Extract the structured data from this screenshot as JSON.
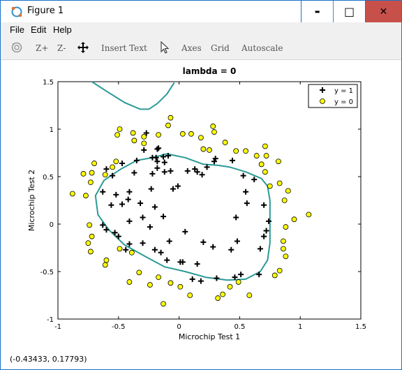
{
  "window": {
    "title": "Figure 1"
  },
  "window_controls": {
    "minimize": "▬",
    "maximize": "□",
    "close": "✕"
  },
  "menu": {
    "file": "File",
    "edit": "Edit",
    "help": "Help"
  },
  "toolbar": {
    "zoom_in": "Z+",
    "zoom_out": "Z-",
    "insert_text": "Insert Text",
    "axes": "Axes",
    "grid": "Grid",
    "autoscale": "Autoscale"
  },
  "status": {
    "coords": "(-0.43433, 0.17793)"
  },
  "colors": {
    "boundary": "#2a9a96",
    "negative_fill": "#ffff00",
    "accent": "#1a73c8",
    "close": "#c8504a"
  },
  "chart_data": {
    "type": "scatter",
    "title": "lambda = 0",
    "xlabel": "Microchip Test 1",
    "ylabel": "Microchip Test 2",
    "xlim": [
      -1,
      1.5
    ],
    "ylim": [
      -1,
      1.5
    ],
    "xticks": [
      "-1",
      "-0.5",
      "0",
      "0.5",
      "1",
      "1.5"
    ],
    "yticks": [
      "-1",
      "-0.5",
      "0",
      "0.5",
      "1",
      "1.5"
    ],
    "legend": {
      "placement": "top-right",
      "entries": [
        "y = 1",
        "y = 0"
      ]
    },
    "series": [
      {
        "name": "y = 1",
        "marker": "plus",
        "points": [
          [
            -0.27,
            0.96
          ],
          [
            -0.29,
            0.78
          ],
          [
            -0.18,
            0.79
          ],
          [
            -0.22,
            0.7
          ],
          [
            -0.19,
            0.7
          ],
          [
            -0.13,
            0.71
          ],
          [
            -0.09,
            0.72
          ],
          [
            -0.18,
            0.66
          ],
          [
            -0.12,
            0.65
          ],
          [
            -0.18,
            0.59
          ],
          [
            -0.12,
            0.55
          ],
          [
            -0.07,
            0.56
          ],
          [
            -0.17,
            0.8
          ],
          [
            -0.35,
            0.67
          ],
          [
            -0.47,
            0.64
          ],
          [
            -0.55,
            0.51
          ],
          [
            -0.6,
            0.58
          ],
          [
            -0.37,
            0.54
          ],
          [
            -0.22,
            0.53
          ],
          [
            -0.63,
            0.34
          ],
          [
            -0.52,
            0.31
          ],
          [
            -0.41,
            0.34
          ],
          [
            -0.23,
            0.37
          ],
          [
            -0.05,
            0.37
          ],
          [
            0.07,
            0.56
          ],
          [
            0.13,
            0.58
          ],
          [
            0.15,
            0.55
          ],
          [
            0.23,
            0.6
          ],
          [
            0.29,
            0.66
          ],
          [
            0.3,
            0.69
          ],
          [
            0.44,
            0.67
          ],
          [
            0.53,
            0.51
          ],
          [
            0.55,
            0.34
          ],
          [
            0.56,
            0.22
          ],
          [
            0.62,
            0.47
          ],
          [
            0.7,
            0.2
          ],
          [
            0.74,
            0.03
          ],
          [
            0.72,
            -0.07
          ],
          [
            0.7,
            -0.13
          ],
          [
            0.67,
            -0.26
          ],
          [
            0.66,
            -0.53
          ],
          [
            0.51,
            -0.53
          ],
          [
            0.46,
            -0.56
          ],
          [
            0.31,
            -0.57
          ],
          [
            0.18,
            -0.6
          ],
          [
            0.11,
            -0.58
          ],
          [
            0.15,
            -0.42
          ],
          [
            0.01,
            -0.4
          ],
          [
            0.03,
            -0.4
          ],
          [
            -0.1,
            -0.38
          ],
          [
            -0.15,
            -0.3
          ],
          [
            -0.2,
            -0.27
          ],
          [
            -0.3,
            -0.2
          ],
          [
            -0.41,
            -0.21
          ],
          [
            -0.44,
            -0.27
          ],
          [
            -0.5,
            -0.13
          ],
          [
            -0.53,
            -0.09
          ],
          [
            -0.6,
            -0.06
          ],
          [
            -0.63,
            -0.01
          ],
          [
            -0.41,
            0.03
          ],
          [
            -0.3,
            0.07
          ],
          [
            -0.24,
            -0.03
          ],
          [
            -0.13,
            0.08
          ],
          [
            -0.2,
            0.18
          ],
          [
            -0.32,
            0.22
          ],
          [
            -0.42,
            0.26
          ],
          [
            -0.56,
            0.2
          ],
          [
            -0.47,
            0.21
          ],
          [
            -0.08,
            -0.18
          ],
          [
            0.05,
            -0.08
          ],
          [
            0.2,
            -0.19
          ],
          [
            0.28,
            -0.24
          ],
          [
            0.43,
            -0.27
          ],
          [
            0.48,
            -0.18
          ],
          [
            0.47,
            0.07
          ],
          [
            0.19,
            0.52
          ],
          [
            -0.01,
            0.4
          ]
        ]
      },
      {
        "name": "y = 0",
        "marker": "circle",
        "points": [
          [
            -0.49,
            1.0
          ],
          [
            -0.51,
            0.94
          ],
          [
            -0.38,
            0.96
          ],
          [
            -0.29,
            0.92
          ],
          [
            -0.17,
            0.94
          ],
          [
            -0.07,
            1.12
          ],
          [
            -0.09,
            1.04
          ],
          [
            0.03,
            0.95
          ],
          [
            0.1,
            0.95
          ],
          [
            0.18,
            0.91
          ],
          [
            0.29,
            0.97
          ],
          [
            0.28,
            1.03
          ],
          [
            0.2,
            0.79
          ],
          [
            0.25,
            0.78
          ],
          [
            0.38,
            0.86
          ],
          [
            0.47,
            0.77
          ],
          [
            0.55,
            0.77
          ],
          [
            0.64,
            0.72
          ],
          [
            0.71,
            0.82
          ],
          [
            0.68,
            0.63
          ],
          [
            0.71,
            0.55
          ],
          [
            0.82,
            0.66
          ],
          [
            0.83,
            0.43
          ],
          [
            0.75,
            0.4
          ],
          [
            0.87,
            0.25
          ],
          [
            0.9,
            0.35
          ],
          [
            0.95,
            0.05
          ],
          [
            1.07,
            0.1
          ],
          [
            0.88,
            -0.03
          ],
          [
            0.86,
            -0.18
          ],
          [
            0.86,
            -0.26
          ],
          [
            0.88,
            -0.34
          ],
          [
            0.83,
            -0.49
          ],
          [
            0.79,
            -0.54
          ],
          [
            0.58,
            -0.75
          ],
          [
            0.42,
            -0.66
          ],
          [
            0.32,
            -0.78
          ],
          [
            0.09,
            -0.75
          ],
          [
            0.01,
            -0.66
          ],
          [
            -0.07,
            -0.62
          ],
          [
            -0.24,
            -0.64
          ],
          [
            -0.17,
            -0.56
          ],
          [
            -0.33,
            -0.51
          ],
          [
            -0.39,
            -0.3
          ],
          [
            -0.49,
            -0.26
          ],
          [
            -0.6,
            -0.38
          ],
          [
            -0.75,
            -0.2
          ],
          [
            -0.73,
            -0.29
          ],
          [
            -0.72,
            -0.13
          ],
          [
            -0.74,
            -0.01
          ],
          [
            -0.77,
            0.3
          ],
          [
            -0.73,
            0.44
          ],
          [
            -0.79,
            0.53
          ],
          [
            -0.72,
            0.54
          ],
          [
            -0.7,
            0.64
          ],
          [
            -0.61,
            0.52
          ],
          [
            -0.55,
            0.6
          ],
          [
            -0.52,
            0.66
          ],
          [
            -0.37,
            0.88
          ],
          [
            -0.29,
            0.85
          ],
          [
            -0.88,
            0.32
          ],
          [
            -0.61,
            -0.43
          ],
          [
            -0.41,
            -0.61
          ],
          [
            -0.13,
            -0.84
          ],
          [
            0.36,
            -0.74
          ],
          [
            0.49,
            -0.61
          ],
          [
            0.72,
            0.72
          ]
        ]
      }
    ]
  }
}
